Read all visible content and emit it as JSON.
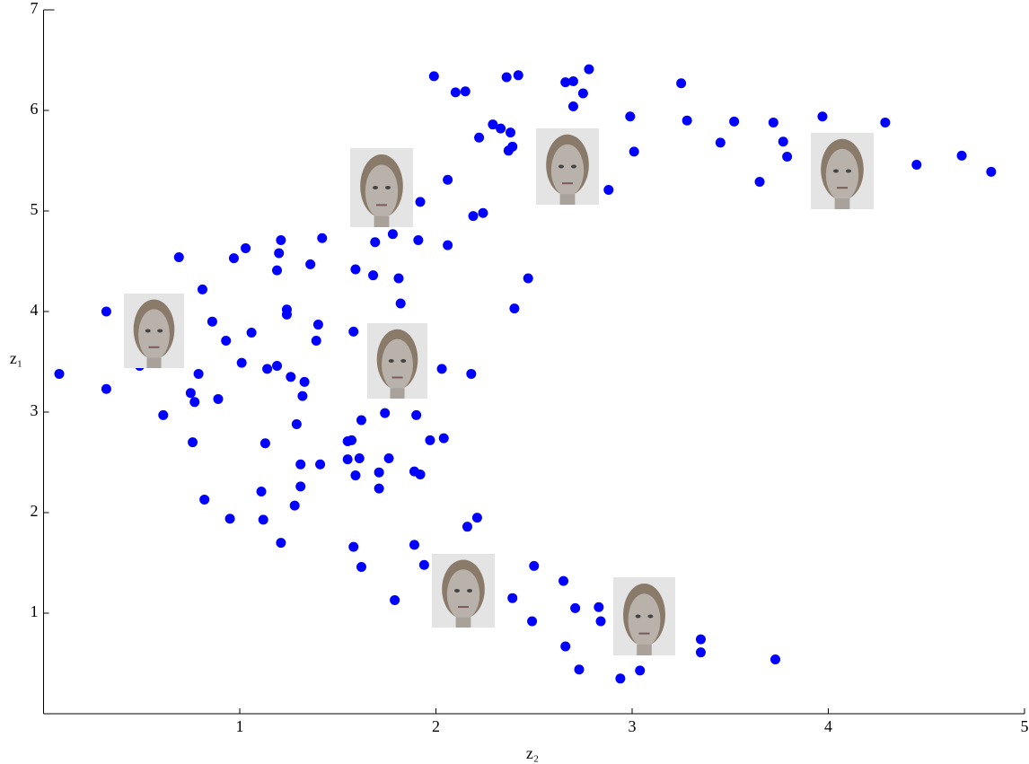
{
  "chart_data": {
    "type": "scatter",
    "x_label": "z₂",
    "y_label": "z₁",
    "xlim": [
      0,
      5
    ],
    "ylim": [
      0,
      7
    ],
    "xticks": [
      1,
      2,
      3,
      4,
      5
    ],
    "yticks": [
      1,
      2,
      3,
      4,
      5,
      6,
      7
    ],
    "color": "#0000ff",
    "x": [
      0.08,
      0.32,
      0.32,
      0.49,
      0.61,
      0.69,
      0.75,
      0.77,
      0.76,
      0.79,
      0.81,
      0.82,
      0.86,
      0.89,
      0.93,
      0.95,
      0.97,
      1.01,
      1.03,
      1.06,
      1.11,
      1.12,
      1.13,
      1.14,
      1.19,
      1.19,
      1.2,
      1.21,
      1.21,
      1.24,
      1.24,
      1.26,
      1.28,
      1.29,
      1.31,
      1.31,
      1.32,
      1.33,
      1.36,
      1.39,
      1.4,
      1.41,
      1.42,
      1.55,
      1.55,
      1.57,
      1.58,
      1.58,
      1.59,
      1.59,
      1.61,
      1.62,
      1.62,
      1.68,
      1.69,
      1.71,
      1.71,
      1.74,
      1.76,
      1.78,
      1.79,
      1.81,
      1.82,
      1.89,
      1.89,
      1.9,
      1.91,
      1.92,
      1.92,
      1.94,
      1.97,
      1.99,
      2.03,
      2.04,
      2.06,
      2.06,
      2.1,
      2.15,
      2.16,
      2.18,
      2.19,
      2.21,
      2.22,
      2.24,
      2.29,
      2.33,
      2.36,
      2.38,
      2.37,
      2.39,
      2.39,
      2.4,
      2.42,
      2.47,
      2.49,
      2.5,
      2.65,
      2.66,
      2.66,
      2.7,
      2.7,
      2.71,
      2.73,
      2.75,
      2.78,
      2.83,
      2.84,
      2.88,
      2.94,
      2.99,
      3.01,
      3.04,
      3.25,
      3.28,
      3.35,
      3.35,
      3.45,
      3.52,
      3.65,
      3.72,
      3.73,
      3.77,
      3.79,
      3.97,
      4.29,
      4.45,
      4.68,
      4.83
    ],
    "values": [
      3.38,
      4.0,
      3.23,
      3.46,
      2.97,
      4.54,
      3.19,
      3.1,
      2.7,
      3.38,
      4.22,
      2.13,
      3.9,
      3.13,
      3.71,
      1.94,
      4.53,
      3.49,
      4.63,
      3.79,
      2.21,
      1.93,
      2.69,
      3.43,
      3.46,
      4.41,
      4.58,
      4.71,
      1.7,
      4.02,
      3.97,
      3.35,
      2.07,
      2.88,
      2.26,
      2.48,
      3.16,
      3.3,
      4.47,
      3.71,
      3.87,
      2.48,
      4.73,
      2.53,
      2.71,
      2.72,
      3.8,
      1.66,
      4.42,
      2.37,
      2.54,
      2.92,
      1.46,
      4.36,
      4.69,
      2.4,
      2.24,
      2.99,
      2.54,
      4.77,
      1.13,
      4.33,
      4.08,
      1.68,
      2.41,
      2.97,
      4.71,
      5.09,
      2.38,
      1.48,
      2.72,
      6.34,
      3.43,
      2.74,
      4.66,
      5.31,
      6.18,
      6.19,
      1.86,
      3.38,
      4.95,
      1.95,
      5.73,
      4.98,
      5.86,
      5.82,
      6.33,
      5.78,
      5.6,
      5.64,
      1.15,
      4.03,
      6.35,
      4.33,
      0.92,
      1.47,
      1.32,
      0.67,
      6.28,
      6.29,
      6.04,
      1.05,
      0.44,
      6.17,
      6.41,
      1.06,
      0.92,
      5.21,
      0.35,
      5.94,
      5.59,
      0.43,
      6.27,
      5.9,
      0.74,
      0.61,
      5.68,
      5.89,
      5.29,
      5.88,
      0.54,
      5.69,
      5.54,
      5.94,
      5.88,
      5.46,
      5.55,
      5.39
    ]
  }
}
